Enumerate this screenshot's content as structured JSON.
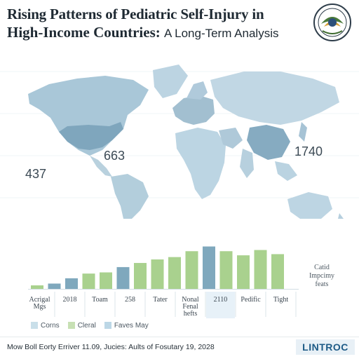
{
  "title": {
    "line1": "Rising Patterns of Pediatric Self-Injury in",
    "line2_main": "High-Income Countries:",
    "line2_sub": "A Long-Term Analysis"
  },
  "map": {
    "labels": [
      {
        "id": "us",
        "text": "663"
      },
      {
        "id": "west",
        "text": "437"
      },
      {
        "id": "china",
        "text": "1740"
      }
    ]
  },
  "chart_data": {
    "type": "bar",
    "title": "",
    "ylim": [
      0,
      100
    ],
    "series": [
      {
        "name": "Corns",
        "color": "#8fb3c4"
      },
      {
        "name": "Cleral",
        "color": "#b5d49c"
      },
      {
        "name": "Faves May",
        "color": "#9fc6de"
      }
    ],
    "bars": [
      {
        "value": 6,
        "series": 1
      },
      {
        "value": 9,
        "series": 0
      },
      {
        "value": 18,
        "series": 0
      },
      {
        "value": 26,
        "series": 1
      },
      {
        "value": 28,
        "series": 1
      },
      {
        "value": 37,
        "series": 0
      },
      {
        "value": 44,
        "series": 1
      },
      {
        "value": 50,
        "series": 1
      },
      {
        "value": 54,
        "series": 1
      },
      {
        "value": 64,
        "series": 1
      },
      {
        "value": 72,
        "series": 0
      },
      {
        "value": 64,
        "series": 1
      },
      {
        "value": 57,
        "series": 1
      },
      {
        "value": 66,
        "series": 1
      },
      {
        "value": 59,
        "series": 1
      }
    ],
    "categories": [
      {
        "label": "Acrigal\nMgs",
        "highlight": false
      },
      {
        "label": "2018",
        "highlight": false
      },
      {
        "label": "Toam",
        "highlight": false
      },
      {
        "label": "258",
        "highlight": false
      },
      {
        "label": "Tater",
        "highlight": false
      },
      {
        "label": "Nonal\nFenal\nhefts",
        "highlight": false
      },
      {
        "label": "2110",
        "highlight": true
      },
      {
        "label": "Pedific",
        "highlight": false
      },
      {
        "label": "Tight",
        "highlight": false
      }
    ],
    "side_label": "Catid\nImpcimy\nfeats"
  },
  "legend": [
    {
      "label": "Corns",
      "color": "#c9dfe9"
    },
    {
      "label": "Cleral",
      "color": "#c7e0b4"
    },
    {
      "label": "Faves May",
      "color": "#bcd7e6"
    }
  ],
  "footer": {
    "text": "Mow Boll Eorty Erriver 11.09, Jucies: Aults of Fosutary 19, 2028",
    "brand": "LINTROC"
  }
}
